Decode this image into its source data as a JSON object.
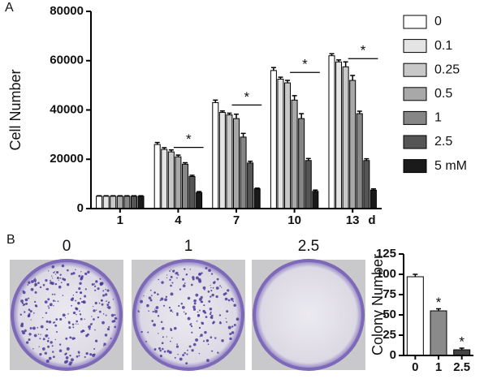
{
  "chart_data": [
    {
      "type": "bar",
      "panel_label": "A",
      "y_label": "Cell Number",
      "x_label": "d",
      "categories": [
        "1",
        "4",
        "7",
        "10",
        "13"
      ],
      "ylim": [
        0,
        80000
      ],
      "yticks": [
        0,
        20000,
        40000,
        60000,
        80000
      ],
      "significance": [
        null,
        "*",
        "*",
        "*",
        "*"
      ],
      "series": [
        {
          "name": "0",
          "color": "#ffffff",
          "values": [
            5000,
            26000,
            43000,
            56000,
            62000
          ],
          "errors": [
            200,
            800,
            1000,
            1200,
            800
          ]
        },
        {
          "name": "0.1",
          "color": "#e4e4e4",
          "values": [
            5000,
            24000,
            39000,
            52500,
            59500
          ],
          "errors": [
            200,
            700,
            600,
            800,
            800
          ]
        },
        {
          "name": "0.25",
          "color": "#c8c8c8",
          "values": [
            5000,
            23000,
            38000,
            51000,
            57500
          ],
          "errors": [
            200,
            800,
            700,
            1000,
            2000
          ]
        },
        {
          "name": "0.5",
          "color": "#a8a8a8",
          "values": [
            5000,
            21000,
            36500,
            44000,
            52000
          ],
          "errors": [
            200,
            700,
            1800,
            1800,
            2000
          ]
        },
        {
          "name": "1",
          "color": "#868686",
          "values": [
            5000,
            18000,
            29000,
            36500,
            38500
          ],
          "errors": [
            200,
            600,
            1500,
            2000,
            1000
          ]
        },
        {
          "name": "2.5",
          "color": "#555555",
          "values": [
            5000,
            13000,
            18500,
            19500,
            19500
          ],
          "errors": [
            200,
            500,
            700,
            800,
            700
          ]
        },
        {
          "name": "5 mM",
          "color": "#1a1a1a",
          "values": [
            5000,
            6500,
            8000,
            7000,
            7500
          ],
          "errors": [
            200,
            400,
            300,
            500,
            500
          ]
        }
      ]
    },
    {
      "type": "bar",
      "panel_label": "B",
      "y_label": "Colony Number",
      "categories": [
        "0",
        "1",
        "2.5"
      ],
      "ylim": [
        0,
        125
      ],
      "yticks": [
        0,
        25,
        50,
        75,
        100,
        125
      ],
      "significance": [
        null,
        "*",
        "*"
      ],
      "values": [
        97,
        55,
        7
      ],
      "errors": [
        3,
        2.5,
        2
      ],
      "colors": [
        "#ffffff",
        "#8a8a8a",
        "#444444"
      ]
    }
  ],
  "photos": [
    "0",
    "1",
    "2.5"
  ]
}
